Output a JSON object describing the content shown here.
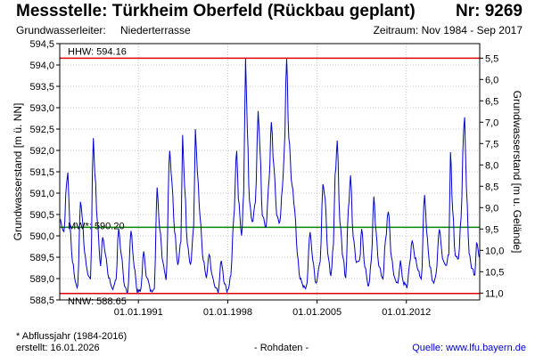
{
  "header": {
    "title": "Messstelle: Türkheim Oberfeld (Rückbau geplant)",
    "nr": "Nr: 9269",
    "aquifer_label": "Grundwasserleiter:",
    "aquifer_value": "Niederterrasse",
    "period": "Zeitraum: Nov 1984 - Sep 2017"
  },
  "footer": {
    "note": "* Abflussjahr (1984-2016)",
    "created": "erstellt:  16.01.2026",
    "raw": "- Rohdaten -",
    "source": "Quelle: www.lfu.bayern.de"
  },
  "colors": {
    "series": "#0000cc",
    "hhw": "#e00000",
    "nnw": "#e00000",
    "mw": "#008800",
    "grid": "#c8c8c8"
  },
  "chart_data": {
    "type": "line",
    "ylabel_left": "Grundwasserstand [m ü. NN]",
    "ylabel_right": "Grundwasserstand [m u. Gelände]",
    "ylim": [
      588.5,
      594.5
    ],
    "yticks_left": [
      "588,5",
      "589,0",
      "589,5",
      "590,0",
      "590,5",
      "591,0",
      "591,5",
      "592,0",
      "592,5",
      "593,0",
      "593,5",
      "594,0",
      "594,5"
    ],
    "yticks_right": [
      "5,5",
      "6,0",
      "6,5",
      "7,0",
      "7,5",
      "8,0",
      "8,5",
      "9,0",
      "9,5",
      "10,0",
      "10,5",
      "11,0"
    ],
    "right_axis_reference": 599.66,
    "xlim": [
      "1984-11-01",
      "2017-09-30"
    ],
    "xticks": [
      "01.01.1991",
      "01.01.1998",
      "01.01.2005",
      "01.01.2012"
    ],
    "grid": true,
    "reference_lines": [
      {
        "label": "HHW: 594.16",
        "value": 594.16,
        "color": "#e00000"
      },
      {
        "label": "MW*: 590.20",
        "value": 590.2,
        "color": "#008800"
      },
      {
        "label": "NNW: 588.65",
        "value": 588.65,
        "color": "#e00000"
      }
    ],
    "series": [
      {
        "values": [
          [
            "1984-11-01",
            590.4
          ],
          [
            "1985-03-01",
            590.1
          ],
          [
            "1985-05-15",
            591.2
          ],
          [
            "1985-06-20",
            591.5
          ],
          [
            "1985-08-15",
            590.3
          ],
          [
            "1985-11-01",
            589.4
          ],
          [
            "1986-02-01",
            588.9
          ],
          [
            "1986-04-01",
            588.8
          ],
          [
            "1986-06-15",
            590.8
          ],
          [
            "1986-08-01",
            590.5
          ],
          [
            "1986-10-15",
            589.6
          ],
          [
            "1987-01-15",
            589.1
          ],
          [
            "1987-04-01",
            589.0
          ],
          [
            "1987-06-20",
            592.3
          ],
          [
            "1987-08-01",
            591.5
          ],
          [
            "1987-10-15",
            590.3
          ],
          [
            "1988-01-15",
            589.3
          ],
          [
            "1988-03-15",
            590.0
          ],
          [
            "1988-06-01",
            589.6
          ],
          [
            "1988-09-01",
            589.0
          ],
          [
            "1989-01-01",
            588.75
          ],
          [
            "1989-04-01",
            589.0
          ],
          [
            "1989-06-15",
            590.2
          ],
          [
            "1989-09-01",
            589.5
          ],
          [
            "1989-12-01",
            588.8
          ],
          [
            "1990-03-01",
            588.7
          ],
          [
            "1990-06-01",
            590.1
          ],
          [
            "1990-09-01",
            589.3
          ],
          [
            "1990-12-01",
            588.7
          ],
          [
            "1991-03-01",
            588.7
          ],
          [
            "1991-06-01",
            589.6
          ],
          [
            "1991-09-01",
            589.0
          ],
          [
            "1992-01-01",
            588.7
          ],
          [
            "1992-04-01",
            588.8
          ],
          [
            "1992-06-20",
            591.1
          ],
          [
            "1992-09-01",
            590.2
          ],
          [
            "1992-12-01",
            589.4
          ],
          [
            "1993-03-01",
            589.0
          ],
          [
            "1993-06-15",
            592.0
          ],
          [
            "1993-08-15",
            591.3
          ],
          [
            "1993-11-01",
            590.1
          ],
          [
            "1994-02-01",
            589.3
          ],
          [
            "1994-05-01",
            589.9
          ],
          [
            "1994-06-20",
            592.4
          ],
          [
            "1994-08-15",
            591.2
          ],
          [
            "1994-11-01",
            589.8
          ],
          [
            "1995-02-01",
            589.3
          ],
          [
            "1995-05-01",
            590.2
          ],
          [
            "1995-06-20",
            592.5
          ],
          [
            "1995-08-15",
            591.5
          ],
          [
            "1995-11-01",
            590.4
          ],
          [
            "1996-02-01",
            589.4
          ],
          [
            "1996-05-01",
            589.0
          ],
          [
            "1996-07-15",
            589.6
          ],
          [
            "1996-10-01",
            589.1
          ],
          [
            "1997-01-01",
            588.8
          ],
          [
            "1997-04-01",
            588.7
          ],
          [
            "1997-07-01",
            589.4
          ],
          [
            "1997-10-01",
            588.9
          ],
          [
            "1998-01-01",
            588.7
          ],
          [
            "1998-04-01",
            589.1
          ],
          [
            "1998-06-20",
            590.4
          ],
          [
            "1998-09-15",
            592.0
          ],
          [
            "1998-11-01",
            590.9
          ],
          [
            "1999-02-01",
            590.0
          ],
          [
            "1999-04-01",
            591.0
          ],
          [
            "1999-05-25",
            594.16
          ],
          [
            "1999-07-15",
            592.5
          ],
          [
            "1999-09-15",
            590.8
          ],
          [
            "1999-12-01",
            590.3
          ],
          [
            "2000-03-01",
            590.8
          ],
          [
            "2000-05-20",
            592.9
          ],
          [
            "2000-07-15",
            592.0
          ],
          [
            "2000-09-15",
            590.5
          ],
          [
            "2001-01-01",
            590.2
          ],
          [
            "2001-04-01",
            591.3
          ],
          [
            "2001-06-01",
            592.7
          ],
          [
            "2001-08-15",
            591.6
          ],
          [
            "2001-11-01",
            590.5
          ],
          [
            "2002-02-01",
            590.3
          ],
          [
            "2002-04-15",
            591.1
          ],
          [
            "2002-06-01",
            591.9
          ],
          [
            "2002-08-15",
            594.1
          ],
          [
            "2002-10-15",
            592.3
          ],
          [
            "2003-01-15",
            591.2
          ],
          [
            "2003-04-01",
            590.6
          ],
          [
            "2003-06-15",
            589.6
          ],
          [
            "2003-09-01",
            589.0
          ],
          [
            "2003-12-01",
            588.8
          ],
          [
            "2004-03-01",
            588.8
          ],
          [
            "2004-06-15",
            590.1
          ],
          [
            "2004-09-01",
            589.4
          ],
          [
            "2004-12-01",
            588.9
          ],
          [
            "2005-04-01",
            589.4
          ],
          [
            "2005-06-15",
            591.2
          ],
          [
            "2005-08-20",
            590.9
          ],
          [
            "2005-11-01",
            589.6
          ],
          [
            "2006-02-01",
            589.1
          ],
          [
            "2006-04-15",
            589.8
          ],
          [
            "2006-06-01",
            591.4
          ],
          [
            "2006-08-01",
            592.2
          ],
          [
            "2006-10-15",
            590.3
          ],
          [
            "2007-01-15",
            589.5
          ],
          [
            "2007-04-01",
            589.0
          ],
          [
            "2007-06-15",
            590.6
          ],
          [
            "2007-08-15",
            591.4
          ],
          [
            "2007-11-01",
            590.0
          ],
          [
            "2008-02-01",
            589.4
          ],
          [
            "2008-05-01",
            589.4
          ],
          [
            "2008-07-01",
            590.2
          ],
          [
            "2008-10-01",
            589.3
          ],
          [
            "2009-01-15",
            588.8
          ],
          [
            "2009-04-01",
            589.4
          ],
          [
            "2009-06-15",
            590.9
          ],
          [
            "2009-08-15",
            590.1
          ],
          [
            "2009-11-01",
            589.3
          ],
          [
            "2010-03-01",
            589.0
          ],
          [
            "2010-05-15",
            589.9
          ],
          [
            "2010-08-01",
            590.6
          ],
          [
            "2010-11-01",
            589.5
          ],
          [
            "2011-02-01",
            589.0
          ],
          [
            "2011-05-01",
            588.9
          ],
          [
            "2011-07-15",
            589.4
          ],
          [
            "2011-10-01",
            588.9
          ],
          [
            "2012-01-15",
            588.8
          ],
          [
            "2012-04-01",
            589.3
          ],
          [
            "2012-06-15",
            589.9
          ],
          [
            "2012-09-01",
            589.5
          ],
          [
            "2012-12-01",
            589.2
          ],
          [
            "2013-03-01",
            589.0
          ],
          [
            "2013-06-05",
            591.0
          ],
          [
            "2013-08-01",
            590.1
          ],
          [
            "2013-11-01",
            589.3
          ],
          [
            "2014-02-01",
            588.9
          ],
          [
            "2014-05-01",
            589.1
          ],
          [
            "2014-08-01",
            590.2
          ],
          [
            "2014-11-01",
            589.5
          ],
          [
            "2015-02-01",
            589.3
          ],
          [
            "2015-05-01",
            589.6
          ],
          [
            "2015-06-15",
            592.0
          ],
          [
            "2015-08-15",
            590.6
          ],
          [
            "2015-11-01",
            589.5
          ],
          [
            "2016-02-01",
            589.5
          ],
          [
            "2016-04-15",
            590.4
          ],
          [
            "2016-06-25",
            592.4
          ],
          [
            "2016-07-25",
            592.8
          ],
          [
            "2016-09-15",
            591.1
          ],
          [
            "2016-12-01",
            589.6
          ],
          [
            "2017-03-01",
            589.2
          ],
          [
            "2017-05-15",
            589.1
          ],
          [
            "2017-07-01",
            589.8
          ],
          [
            "2017-09-30",
            589.5
          ]
        ]
      }
    ]
  }
}
